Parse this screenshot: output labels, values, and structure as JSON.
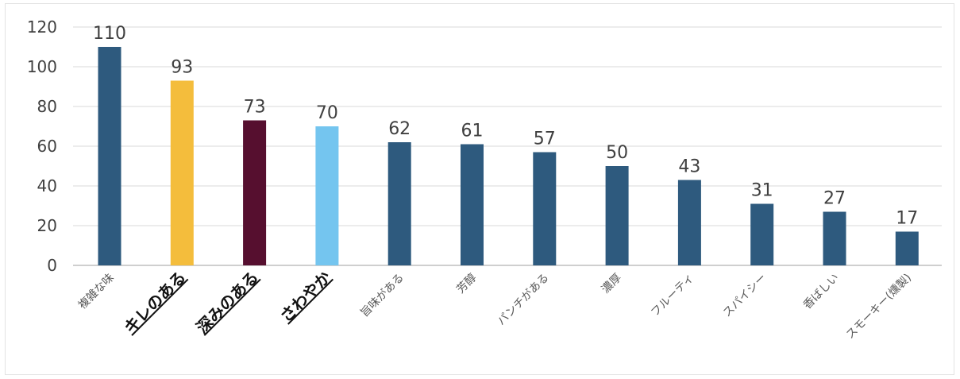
{
  "chart_data": {
    "type": "bar",
    "title": "",
    "xlabel": "",
    "ylabel": "",
    "ylim": [
      0,
      120
    ],
    "yticks": [
      0,
      20,
      40,
      60,
      80,
      100,
      120
    ],
    "grid": true,
    "legend": "none",
    "categories": [
      "複雑な味",
      "キレのある",
      "深みのある",
      "さわやか",
      "旨味がある",
      "芳醇",
      "パンチがある",
      "濃厚",
      "フルーティ",
      "スパイシー",
      "香ばしい",
      "スモーキー(燻製)"
    ],
    "values": [
      110,
      93,
      73,
      70,
      62,
      61,
      57,
      50,
      43,
      31,
      27,
      17
    ],
    "data_labels": [
      "110",
      "93",
      "73",
      "70",
      "62",
      "61",
      "57",
      "50",
      "43",
      "31",
      "27",
      "17"
    ],
    "bar_colors": [
      "#2e5a7e",
      "#f4bd3c",
      "#560f2f",
      "#74c5ef",
      "#2e5a7e",
      "#2e5a7e",
      "#2e5a7e",
      "#2e5a7e",
      "#2e5a7e",
      "#2e5a7e",
      "#2e5a7e",
      "#2e5a7e"
    ],
    "highlighted_categories": [
      "キレのある",
      "深みのある",
      "さわやか"
    ],
    "gridline_color": "#d9d9d9",
    "axis_color": "#bfbfbf"
  }
}
